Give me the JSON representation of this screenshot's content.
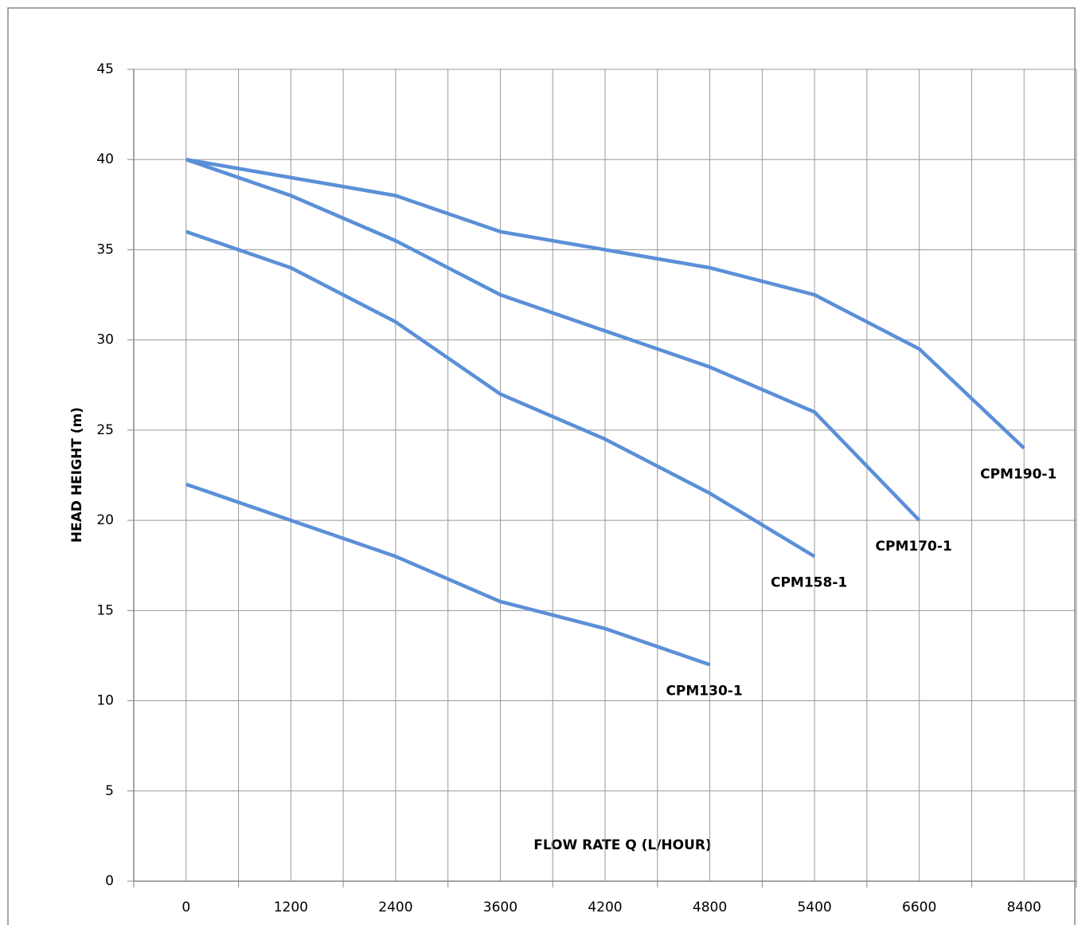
{
  "chart_data": {
    "type": "line",
    "y_label": "HEAD HEIGHT (m)",
    "x_label": "FLOW RATE Q (L/HOUR)",
    "categories": [
      "0",
      "1200",
      "2400",
      "3600",
      "4200",
      "4800",
      "5400",
      "6600",
      "8400"
    ],
    "series": [
      {
        "name": "CPM190-1",
        "color": "#5b8fd8",
        "values": [
          40,
          39,
          38,
          36,
          35,
          34,
          32.5,
          29.5,
          24
        ]
      },
      {
        "name": "CPM170-1",
        "color": "#5b8fd8",
        "values": [
          40,
          38,
          35.5,
          32.5,
          30.5,
          28.5,
          26,
          20,
          null
        ]
      },
      {
        "name": "CPM158-1",
        "color": "#5b8fd8",
        "values": [
          36,
          34,
          31,
          27,
          24.5,
          21.5,
          18,
          null,
          null
        ]
      },
      {
        "name": "CPM130-1",
        "color": "#5b8fd8",
        "values": [
          22,
          20,
          18,
          15.5,
          14,
          12,
          null,
          null,
          null
        ]
      }
    ],
    "ylim": [
      0,
      45
    ],
    "yticks": [
      0,
      5,
      10,
      15,
      20,
      25,
      30,
      35,
      40,
      45
    ],
    "grid": true
  }
}
